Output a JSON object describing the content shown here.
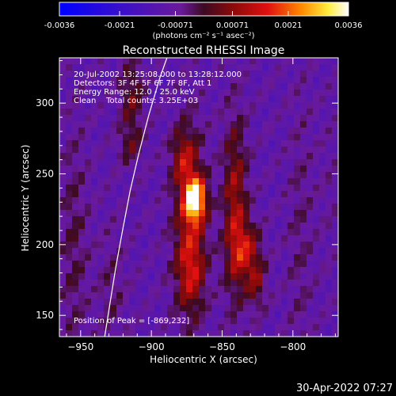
{
  "colorbar": {
    "tick_labels": [
      "-0.0036",
      "-0.0021",
      "-0.00071",
      "0.00071",
      "0.0021",
      "0.0036"
    ],
    "tick_values": [
      -0.0036,
      -0.0021,
      -0.00071,
      0.00071,
      0.0021,
      0.0036
    ],
    "range": [
      -0.0036,
      0.0036
    ],
    "unit_label": "(photons cm⁻² s⁻¹ asec⁻²)"
  },
  "title": "Reconstructed RHESSI Image",
  "info": {
    "time": "20-Jul-2002 13:25:08.000 to 13:28:12.000",
    "detectors": "Detectors: 3F 4F 5F 6F 7F 8F, Att 1",
    "energy": "Energy Range: 12.0 - 25.0 keV",
    "clean": "Clean    Total counts: 3.25E+03"
  },
  "peak_label": "Position of Peak = [-869,232]",
  "timestamp": "30-Apr-2022 07:27",
  "colors": {
    "background": "#000000",
    "limb": "#ffffff"
  },
  "chart_data": {
    "type": "heatmap",
    "title": "Reconstructed RHESSI Image",
    "xlabel": "Heliocentric X (arcsec)",
    "ylabel": "Heliocentric Y (arcsec)",
    "xlim": [
      -965,
      -768
    ],
    "ylim": [
      135,
      332
    ],
    "xticks": [
      -950,
      -900,
      -850,
      -800
    ],
    "yticks": [
      150,
      200,
      250,
      300
    ],
    "colormap": "blue-purple-red-yellow-white (RHESSI)",
    "value_range": [
      -0.0036,
      0.0036
    ],
    "peak_position": [
      -869,
      232
    ],
    "components": [
      {
        "x": -869,
        "y": 232,
        "sx": 5,
        "sy": 10,
        "amp": 1.0
      },
      {
        "x": -873,
        "y": 215,
        "sx": 8,
        "sy": 44,
        "amp": 0.45
      },
      {
        "x": -872,
        "y": 180,
        "sx": 7,
        "sy": 18,
        "amp": 0.28
      },
      {
        "x": -878,
        "y": 262,
        "sx": 6,
        "sy": 14,
        "amp": 0.3
      },
      {
        "x": -841,
        "y": 226,
        "sx": 6,
        "sy": 45,
        "amp": 0.45
      },
      {
        "x": -833,
        "y": 196,
        "sx": 7,
        "sy": 14,
        "amp": 0.42
      },
      {
        "x": -826,
        "y": 172,
        "sx": 5,
        "sy": 13,
        "amp": 0.3
      },
      {
        "x": -914,
        "y": 305,
        "sx": 6,
        "sy": 20,
        "amp": 0.3
      },
      {
        "x": -915,
        "y": 270,
        "sx": 6,
        "sy": 10,
        "amp": 0.2
      },
      {
        "x": -955,
        "y": 200,
        "sx": 7,
        "sy": 60,
        "amp": 0.18
      },
      {
        "x": -928,
        "y": 168,
        "sx": 7,
        "sy": 30,
        "amp": 0.14
      },
      {
        "x": -795,
        "y": 206,
        "sx": 6,
        "sy": 75,
        "amp": 0.12
      },
      {
        "x": -775,
        "y": 240,
        "sx": 6,
        "sy": 40,
        "amp": 0.05
      }
    ],
    "limb": [
      [
        -933,
        135
      ],
      [
        -929,
        160
      ],
      [
        -925,
        185
      ],
      [
        -920,
        212
      ],
      [
        -915,
        238
      ],
      [
        -909,
        264
      ],
      [
        -902,
        291
      ],
      [
        -894,
        318
      ],
      [
        -889,
        332
      ]
    ]
  }
}
